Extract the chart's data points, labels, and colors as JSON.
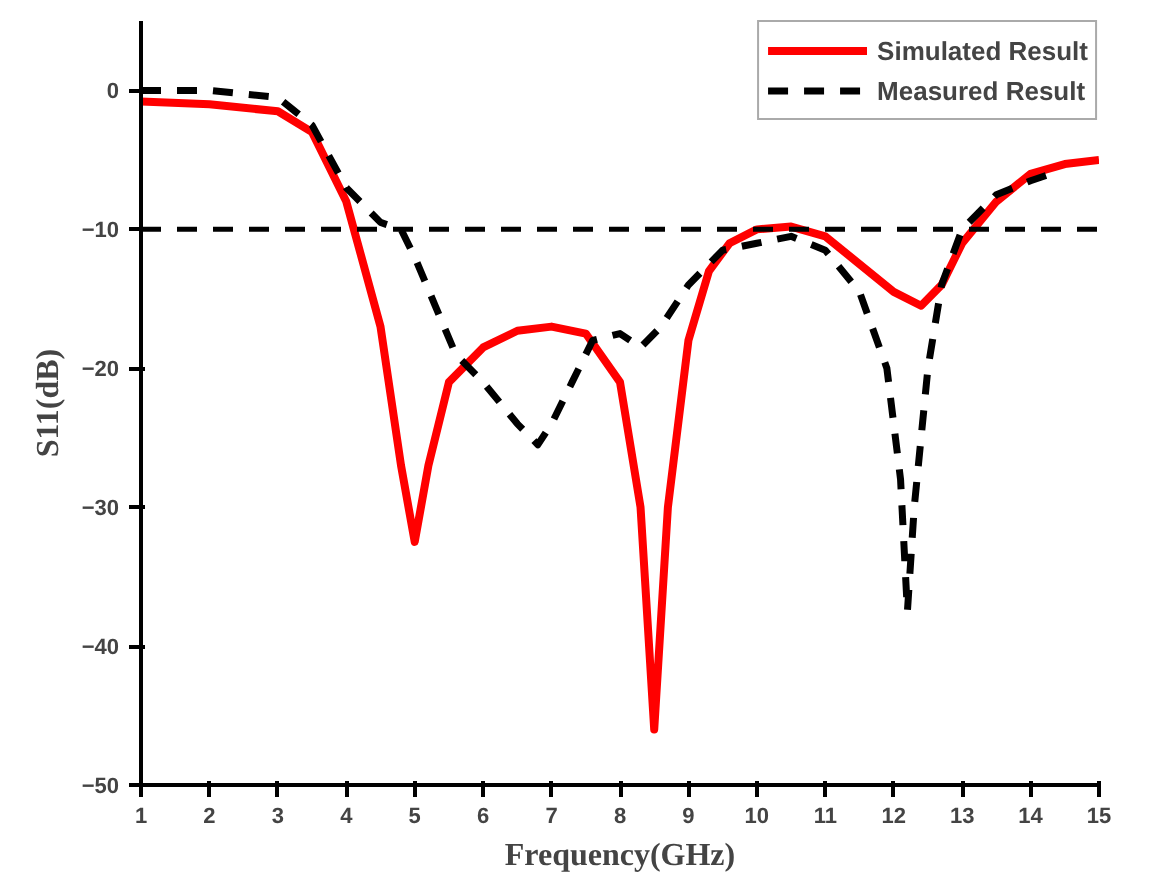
{
  "chart_data": {
    "type": "line",
    "xlabel": "Frequency(GHz)",
    "ylabel": "S11(dB)",
    "xlim": [
      1,
      15
    ],
    "ylim": [
      -50,
      5
    ],
    "xticks": [
      1,
      2,
      3,
      4,
      5,
      6,
      7,
      8,
      9,
      10,
      11,
      12,
      13,
      14,
      15
    ],
    "yticks": [
      0,
      -10,
      -20,
      -30,
      -40,
      -50
    ],
    "grid": false,
    "legend": "top right",
    "marker": "none",
    "series": [
      {
        "name": "Simulated Result",
        "color": "#ff0000",
        "line_style": "solid",
        "x": [
          1,
          2,
          3,
          3.5,
          4,
          4.5,
          4.8,
          5,
          5.2,
          5.5,
          6,
          6.5,
          7,
          7.5,
          8,
          8.3,
          8.5,
          8.7,
          9,
          9.3,
          9.6,
          10,
          10.5,
          11,
          11.5,
          12,
          12.4,
          12.7,
          13,
          13.5,
          14,
          14.5,
          15
        ],
        "values": [
          -0.8,
          -1,
          -1.5,
          -3,
          -8,
          -17,
          -27,
          -32.5,
          -27,
          -21,
          -18.5,
          -17.3,
          -17,
          -17.5,
          -21,
          -30,
          -46,
          -30,
          -18,
          -13,
          -11,
          -10,
          -9.8,
          -10.5,
          -12.5,
          -14.5,
          -15.5,
          -14,
          -11,
          -8,
          -6,
          -5.3,
          -5
        ]
      },
      {
        "name": "Measured Result",
        "color": "#000000",
        "line_style": "dashed",
        "x": [
          1,
          2,
          3,
          3.5,
          4,
          4.5,
          4.8,
          5,
          5.3,
          5.6,
          6,
          6.5,
          6.8,
          7,
          7.3,
          7.6,
          8,
          8.3,
          8.6,
          9,
          9.5,
          10,
          10.5,
          11,
          11.5,
          11.9,
          12.1,
          12.2,
          12.3,
          12.5,
          12.7,
          13,
          13.5,
          14,
          14.3
        ],
        "values": [
          0,
          0,
          -0.5,
          -2.5,
          -7,
          -9.5,
          -10,
          -12,
          -15.5,
          -19,
          -21,
          -24,
          -25.5,
          -24,
          -21,
          -18,
          -17.5,
          -18.5,
          -17,
          -14,
          -11.5,
          -11,
          -10.5,
          -11.5,
          -14.5,
          -20,
          -28,
          -37.5,
          -30,
          -20,
          -14,
          -10,
          -7.5,
          -6.5,
          -6
        ]
      }
    ],
    "ref_lines": [
      {
        "axis": "y",
        "value": -10,
        "color": "#000000",
        "line_style": "dashed"
      }
    ]
  }
}
